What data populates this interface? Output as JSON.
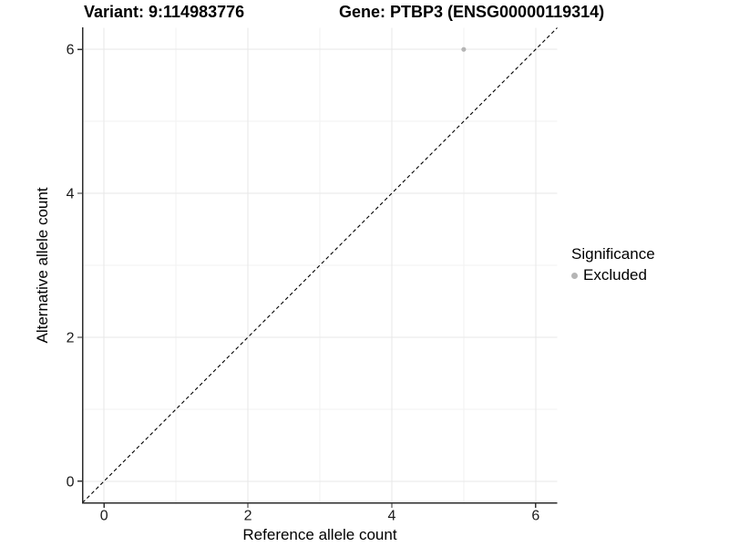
{
  "chart_data": {
    "type": "scatter",
    "title_left": "Variant: 9:114983776",
    "title_right": "Gene: PTBP3 (ENSG00000119314)",
    "xlabel": "Reference allele count",
    "ylabel": "Alternative allele count",
    "xlim": [
      -0.3,
      6.3
    ],
    "ylim": [
      -0.3,
      6.3
    ],
    "x_ticks": [
      0,
      2,
      4,
      6
    ],
    "y_ticks": [
      0,
      2,
      4,
      6
    ],
    "minor_gridlines": [
      1,
      3,
      5
    ],
    "grid": "on",
    "identity_line": {
      "style": "dashed",
      "x1": -0.3,
      "y1": -0.3,
      "x2": 6.3,
      "y2": 6.3,
      "color": "#000000"
    },
    "series": [
      {
        "name": "Excluded",
        "color": "#b5b5b5",
        "points": [
          {
            "x": 5,
            "y": 6
          }
        ]
      }
    ],
    "legend": {
      "position": "right",
      "title": "Significance",
      "items": [
        {
          "label": "Excluded",
          "color": "#b5b5b5"
        }
      ]
    },
    "colors": {
      "grid_major": "#e7e7e7",
      "grid_minor": "#f2f2f2",
      "axis_line": "#2b2b2b",
      "tick_mark": "#333333",
      "tick_label": "#1a1a1a",
      "text": "#000000"
    }
  }
}
